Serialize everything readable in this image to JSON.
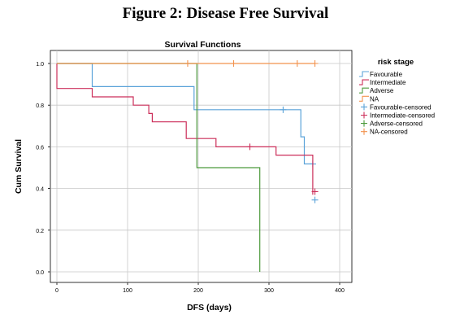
{
  "figure_title": "Figure 2: Disease Free Survival",
  "chart_data": {
    "type": "line",
    "title": "Survival Functions",
    "xlabel": "DFS (days)",
    "ylabel": "Cum Survival",
    "xlim": [
      0,
      400
    ],
    "ylim": [
      0.0,
      1.0
    ],
    "xticks": [
      0,
      100,
      200,
      300,
      400
    ],
    "xtick_labels": [
      "0",
      "100",
      "200",
      "300",
      "400"
    ],
    "yticks": [
      0.0,
      0.2,
      0.4,
      0.6,
      0.8,
      1.0
    ],
    "ytick_labels": [
      "0.0",
      "0.2",
      "0.4",
      "0.6",
      "0.8",
      "1.0"
    ],
    "grid": true,
    "legend_title": "risk stage",
    "legend_position": "right",
    "series": [
      {
        "name": "Favourable",
        "color": "#5ba3d9",
        "steps": [
          [
            0,
            1.0
          ],
          [
            50,
            1.0
          ],
          [
            50,
            0.889
          ],
          [
            194,
            0.889
          ],
          [
            194,
            0.778
          ],
          [
            345,
            0.778
          ],
          [
            345,
            0.648
          ],
          [
            350,
            0.648
          ],
          [
            350,
            0.518
          ],
          [
            362,
            0.518
          ],
          [
            362,
            0.518
          ]
        ],
        "censored": [
          [
            320,
            0.778
          ],
          [
            362,
            0.518
          ],
          [
            365,
            0.345
          ]
        ]
      },
      {
        "name": "Intermediate",
        "color": "#cc2f5a",
        "steps": [
          [
            0,
            1.0
          ],
          [
            0,
            0.88
          ],
          [
            50,
            0.88
          ],
          [
            50,
            0.84
          ],
          [
            108,
            0.84
          ],
          [
            108,
            0.8
          ],
          [
            130,
            0.8
          ],
          [
            130,
            0.76
          ],
          [
            135,
            0.76
          ],
          [
            135,
            0.72
          ],
          [
            183,
            0.72
          ],
          [
            183,
            0.64
          ],
          [
            225,
            0.64
          ],
          [
            225,
            0.6
          ],
          [
            310,
            0.6
          ],
          [
            310,
            0.56
          ],
          [
            362,
            0.56
          ],
          [
            362,
            0.37
          ]
        ],
        "censored": [
          [
            273,
            0.6
          ],
          [
            365,
            0.385
          ]
        ]
      },
      {
        "name": "Adverse",
        "color": "#4c9a3c",
        "steps": [
          [
            0,
            1.0
          ],
          [
            198,
            1.0
          ],
          [
            198,
            0.5
          ],
          [
            287,
            0.5
          ],
          [
            287,
            0.0
          ]
        ],
        "censored": []
      },
      {
        "name": "NA",
        "color": "#f2924e",
        "steps": [
          [
            0,
            1.0
          ],
          [
            365,
            1.0
          ]
        ],
        "censored": [
          [
            185,
            1.0
          ],
          [
            250,
            1.0
          ],
          [
            340,
            1.0
          ],
          [
            365,
            1.0
          ]
        ]
      }
    ],
    "legend_entries": [
      {
        "label": "Favourable",
        "color": "#5ba3d9",
        "kind": "step"
      },
      {
        "label": "Intermediate",
        "color": "#cc2f5a",
        "kind": "step"
      },
      {
        "label": "Adverse",
        "color": "#4c9a3c",
        "kind": "step"
      },
      {
        "label": "NA",
        "color": "#f2924e",
        "kind": "step"
      },
      {
        "label": "Favourable-censored",
        "color": "#5ba3d9",
        "kind": "cross"
      },
      {
        "label": "Intermediate-censored",
        "color": "#cc2f5a",
        "kind": "cross"
      },
      {
        "label": "Adverse-censored",
        "color": "#4c9a3c",
        "kind": "cross"
      },
      {
        "label": "NA-censored",
        "color": "#f2924e",
        "kind": "cross"
      }
    ]
  }
}
